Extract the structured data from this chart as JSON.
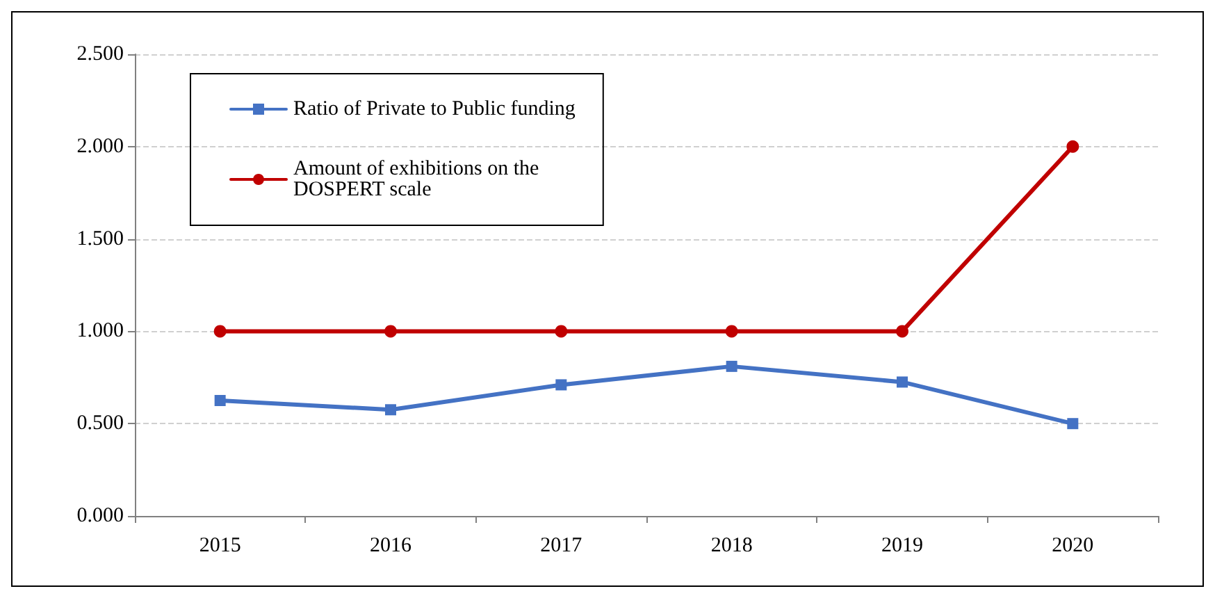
{
  "chart_data": {
    "type": "line",
    "categories": [
      "2015",
      "2016",
      "2017",
      "2018",
      "2019",
      "2020"
    ],
    "series": [
      {
        "name": "Ratio of Private to Public funding",
        "color": "#4472c4",
        "marker": "square",
        "values": [
          0.625,
          0.575,
          0.71,
          0.81,
          0.725,
          0.5
        ]
      },
      {
        "name": "Amount of exhibitions on the DOSPERT scale",
        "color": "#c00000",
        "marker": "circle",
        "values": [
          1.0,
          1.0,
          1.0,
          1.0,
          1.0,
          2.0
        ]
      }
    ],
    "ylim": [
      0,
      2.5
    ],
    "yticks": [
      {
        "value": 0,
        "label": "0.000"
      },
      {
        "value": 0.5,
        "label": "0.500"
      },
      {
        "value": 1,
        "label": "1.000"
      },
      {
        "value": 1.5,
        "label": "1.500"
      },
      {
        "value": 2,
        "label": "2.000"
      },
      {
        "value": 2.5,
        "label": "2.500"
      }
    ],
    "grid": "y",
    "legend": "top left"
  }
}
